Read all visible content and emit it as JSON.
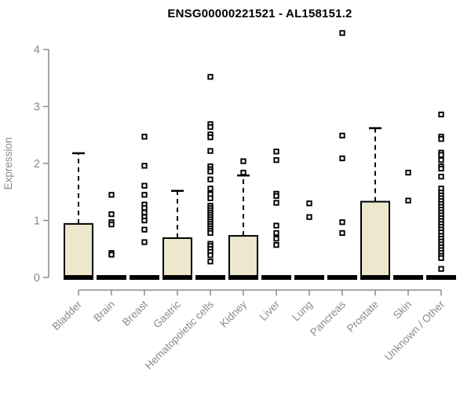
{
  "title": "ENSG00000221521 - AL158151.2",
  "chart_data": {
    "type": "boxplot",
    "title": "ENSG00000221521 - AL158151.2",
    "xlabel": "",
    "ylabel": "Expression",
    "ylim": [
      0,
      4.4
    ],
    "yticks": [
      0,
      1,
      2,
      3,
      4
    ],
    "grid": false,
    "legend": "none",
    "categories": [
      "Bladder",
      "Brain",
      "Breast",
      "Gastric",
      "Hematopoietic cells",
      "Kidney",
      "Liver",
      "Lung",
      "Pancreas",
      "Prostate",
      "Skin",
      "Unknown / Other"
    ],
    "series": [
      {
        "category": "Bladder",
        "min": 0,
        "q1": 0,
        "median": 0,
        "q3": 0.94,
        "whisker_low": 0,
        "whisker_high": 2.18,
        "outliers": []
      },
      {
        "category": "Brain",
        "min": 0,
        "q1": 0,
        "median": 0,
        "q3": 0,
        "whisker_low": 0,
        "whisker_high": 0,
        "outliers": [
          1.45,
          1.11,
          0.97,
          0.93,
          0.43,
          0.4
        ]
      },
      {
        "category": "Breast",
        "min": 0,
        "q1": 0,
        "median": 0,
        "q3": 0,
        "whisker_low": 0,
        "whisker_high": 0,
        "outliers": [
          2.47,
          1.96,
          1.61,
          1.45,
          1.28,
          1.22,
          1.14,
          1.06,
          1.0,
          0.84,
          0.62
        ]
      },
      {
        "category": "Gastric",
        "min": 0,
        "q1": 0,
        "median": 0,
        "q3": 0.69,
        "whisker_low": 0,
        "whisker_high": 1.52,
        "outliers": []
      },
      {
        "category": "Hematopoietic cells",
        "min": 0,
        "q1": 0,
        "median": 0,
        "q3": 0,
        "whisker_low": 0,
        "whisker_high": 0,
        "outliers": [
          3.52,
          2.69,
          2.64,
          2.51,
          2.46,
          2.22,
          1.95,
          1.9,
          1.86,
          1.72,
          1.56,
          1.46,
          1.39,
          1.26,
          1.22,
          1.18,
          1.14,
          1.1,
          1.06,
          1.02,
          0.98,
          0.94,
          0.9,
          0.86,
          0.82,
          0.78,
          0.59,
          0.55,
          0.5,
          0.45,
          0.39,
          0.28
        ]
      },
      {
        "category": "Kidney",
        "min": 0,
        "q1": 0,
        "median": 0,
        "q3": 0.73,
        "whisker_low": 0,
        "whisker_high": 1.79,
        "outliers": [
          2.04,
          1.84
        ]
      },
      {
        "category": "Liver",
        "min": 0,
        "q1": 0,
        "median": 0,
        "q3": 0,
        "whisker_low": 0,
        "whisker_high": 0,
        "outliers": [
          2.21,
          2.06,
          1.47,
          1.43,
          1.31,
          0.91,
          0.78,
          0.68,
          0.57
        ]
      },
      {
        "category": "Lung",
        "min": 0,
        "q1": 0,
        "median": 0,
        "q3": 0,
        "whisker_low": 0,
        "whisker_high": 0,
        "outliers": [
          1.3,
          1.06
        ]
      },
      {
        "category": "Pancreas",
        "min": 0,
        "q1": 0,
        "median": 0,
        "q3": 0,
        "whisker_low": 0,
        "whisker_high": 0,
        "outliers": [
          4.29,
          2.49,
          2.09,
          0.97,
          0.78
        ]
      },
      {
        "category": "Prostate",
        "min": 0,
        "q1": 0,
        "median": 0,
        "q3": 1.33,
        "whisker_low": 0,
        "whisker_high": 2.62,
        "outliers": []
      },
      {
        "category": "Skin",
        "min": 0,
        "q1": 0,
        "median": 0,
        "q3": 0,
        "whisker_low": 0,
        "whisker_high": 0,
        "outliers": [
          1.84,
          1.35
        ]
      },
      {
        "category": "Unknown / Other",
        "min": 0,
        "q1": 0,
        "median": 0,
        "q3": 0,
        "whisker_low": 0,
        "whisker_high": 0,
        "outliers": [
          2.86,
          2.47,
          2.43,
          2.19,
          2.15,
          2.06,
          1.95,
          1.91,
          1.77,
          1.56,
          1.49,
          1.44,
          1.39,
          1.34,
          1.29,
          1.24,
          1.19,
          1.14,
          1.09,
          1.04,
          0.99,
          0.94,
          0.89,
          0.84,
          0.79,
          0.73,
          0.68,
          0.63,
          0.58,
          0.53,
          0.48,
          0.43,
          0.38,
          0.34,
          0.15
        ]
      }
    ],
    "colors": {
      "box_fill": "#ece7cd",
      "box_stroke": "#000000",
      "median": "#000000",
      "whisker": "#000000",
      "outlier": "#000000",
      "axis": "#8a8a8a",
      "axis_text": "#8a8a8a",
      "title": "#000000",
      "background": "#ffffff"
    }
  }
}
